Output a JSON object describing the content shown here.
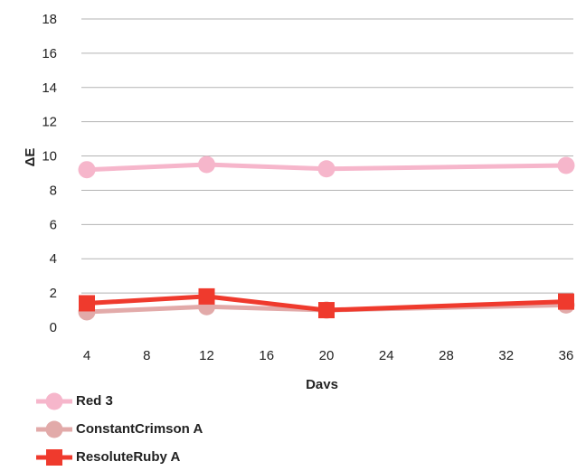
{
  "chart_data": {
    "type": "line",
    "xlabel": "Days",
    "ylabel": "ΔE",
    "xlim": [
      4,
      36
    ],
    "ylim": [
      0,
      18
    ],
    "xticks": [
      4,
      8,
      12,
      16,
      20,
      24,
      28,
      32,
      36
    ],
    "yticks": [
      0,
      2,
      4,
      6,
      8,
      10,
      12,
      14,
      16,
      18
    ],
    "grid": "horizontal",
    "legend_position": "bottom-left",
    "x": [
      4,
      12,
      20,
      36
    ],
    "series": [
      {
        "name": "Red 3",
        "values": [
          9.2,
          9.5,
          9.25,
          9.45
        ],
        "color": "#f6b6cb",
        "marker": "circle"
      },
      {
        "name": "ConstantCrimson A",
        "values": [
          0.9,
          1.2,
          1.0,
          1.3
        ],
        "color": "#e2aaa9",
        "marker": "circle"
      },
      {
        "name": "ResoluteRuby A",
        "values": [
          1.4,
          1.8,
          1.0,
          1.5
        ],
        "color": "#ef3a2d",
        "marker": "square"
      }
    ]
  }
}
